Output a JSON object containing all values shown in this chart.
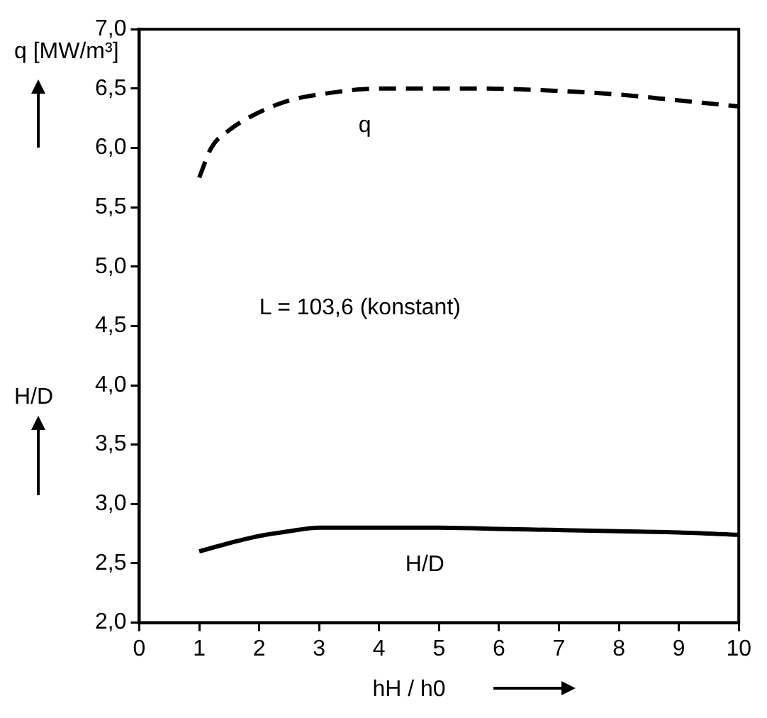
{
  "chart_data": {
    "type": "line",
    "xlabel": "hH / h0",
    "ylabel": "q [MW/m³]",
    "annotations": [
      "H/D",
      "L = 103,6 (konstant)"
    ],
    "xlim": [
      0,
      10
    ],
    "xticks": [
      0,
      1,
      2,
      3,
      4,
      5,
      6,
      7,
      8,
      9,
      10
    ],
    "ylim": [
      2.0,
      7.0
    ],
    "yticks": [
      {
        "value": 2.0,
        "label": "2,0"
      },
      {
        "value": 2.5,
        "label": "2,5"
      },
      {
        "value": 3.0,
        "label": "3,0"
      },
      {
        "value": 3.5,
        "label": "3,5"
      },
      {
        "value": 4.0,
        "label": "4,0"
      },
      {
        "value": 4.5,
        "label": "4,5"
      },
      {
        "value": 5.0,
        "label": "5,0"
      },
      {
        "value": 5.5,
        "label": "5,5"
      },
      {
        "value": 6.0,
        "label": "6,0"
      },
      {
        "value": 6.5,
        "label": "6,5"
      },
      {
        "value": 7.0,
        "label": "7,0"
      }
    ],
    "grid": false,
    "legend": false,
    "marker": "none",
    "series": [
      {
        "name": "q",
        "color": "#000000",
        "line_style": "dashed",
        "x": [
          1,
          1.2,
          1.5,
          2,
          2.5,
          3,
          4,
          5,
          5.7,
          7,
          8,
          9,
          10
        ],
        "values": [
          5.75,
          6.0,
          6.15,
          6.3,
          6.4,
          6.45,
          6.5,
          6.5,
          6.5,
          6.48,
          6.45,
          6.4,
          6.35
        ]
      },
      {
        "name": "H/D",
        "color": "#000000",
        "line_style": "solid",
        "x": [
          1,
          1.5,
          2,
          2.5,
          3,
          4,
          5,
          6,
          7,
          8,
          9,
          10
        ],
        "values": [
          2.6,
          2.67,
          2.73,
          2.77,
          2.8,
          2.8,
          2.8,
          2.79,
          2.78,
          2.77,
          2.76,
          2.74
        ]
      }
    ]
  }
}
